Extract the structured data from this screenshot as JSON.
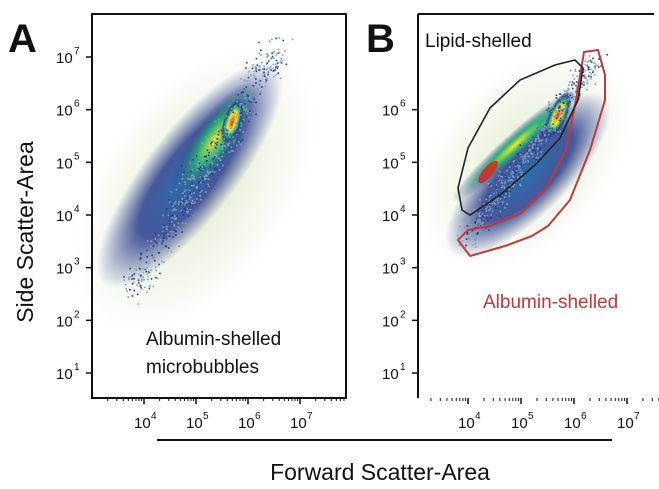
{
  "chart_data": [
    {
      "type": "scatter",
      "panel_label": "A",
      "xlabel": "Forward Scatter-Area",
      "ylabel": "Side Scatter-Area",
      "x_scale": "log",
      "y_scale": "log",
      "xlim": [
        1000,
        50000000
      ],
      "ylim": [
        4,
        30000000
      ],
      "x_ticks": [
        {
          "base": "10",
          "exp": "4",
          "value": 10000
        },
        {
          "base": "10",
          "exp": "5",
          "value": 100000
        },
        {
          "base": "10",
          "exp": "6",
          "value": 1000000
        },
        {
          "base": "10",
          "exp": "7",
          "value": 10000000
        }
      ],
      "y_ticks": [
        {
          "base": "10",
          "exp": "7",
          "value": 10000000
        },
        {
          "base": "10",
          "exp": "6",
          "value": 1000000
        },
        {
          "base": "10",
          "exp": "5",
          "value": 100000
        },
        {
          "base": "10",
          "exp": "4",
          "value": 10000
        },
        {
          "base": "10",
          "exp": "3",
          "value": 1000
        },
        {
          "base": "10",
          "exp": "2",
          "value": 100
        },
        {
          "base": "10",
          "exp": "1",
          "value": 10
        }
      ],
      "annotations": [
        {
          "text": "Albumin-shelled",
          "line": 1
        },
        {
          "text": "microbubbles",
          "line": 2
        }
      ],
      "density_peak": {
        "x": 500000,
        "y": 600000
      },
      "populations": [
        {
          "name": "Albumin-shelled microbubbles",
          "center": {
            "x": 200000,
            "y": 200000
          }
        }
      ],
      "colors": {
        "low": "#2a3d8f",
        "mid": "#2bb673",
        "high": "#f5e52a",
        "peak": "#d7261e"
      }
    },
    {
      "type": "scatter",
      "panel_label": "B",
      "xlabel": "Forward Scatter-Area",
      "ylabel": "Side Scatter-Area",
      "x_scale": "log",
      "y_scale": "log",
      "xlim": [
        1000,
        50000000
      ],
      "ylim": [
        4,
        30000000
      ],
      "x_ticks": [
        {
          "base": "10",
          "exp": "4",
          "value": 10000
        },
        {
          "base": "10",
          "exp": "5",
          "value": 100000
        },
        {
          "base": "10",
          "exp": "6",
          "value": 1000000
        },
        {
          "base": "10",
          "exp": "7",
          "value": 10000000
        }
      ],
      "y_ticks": [
        {
          "base": "10",
          "exp": "6",
          "value": 1000000
        },
        {
          "base": "10",
          "exp": "5",
          "value": 100000
        },
        {
          "base": "10",
          "exp": "4",
          "value": 10000
        },
        {
          "base": "10",
          "exp": "3",
          "value": 1000
        },
        {
          "base": "10",
          "exp": "2",
          "value": 100
        },
        {
          "base": "10",
          "exp": "1",
          "value": 10
        }
      ],
      "gates": [
        {
          "name": "Lipid-shelled",
          "color": "#222222"
        },
        {
          "name": "Albumin-shelled",
          "color": "#c0393b"
        }
      ],
      "colors": {
        "low": "#2a3d8f",
        "mid": "#2bb673",
        "high": "#f5e52a",
        "peak": "#d7261e"
      }
    }
  ],
  "shared_xlabel": "Forward Scatter-Area"
}
